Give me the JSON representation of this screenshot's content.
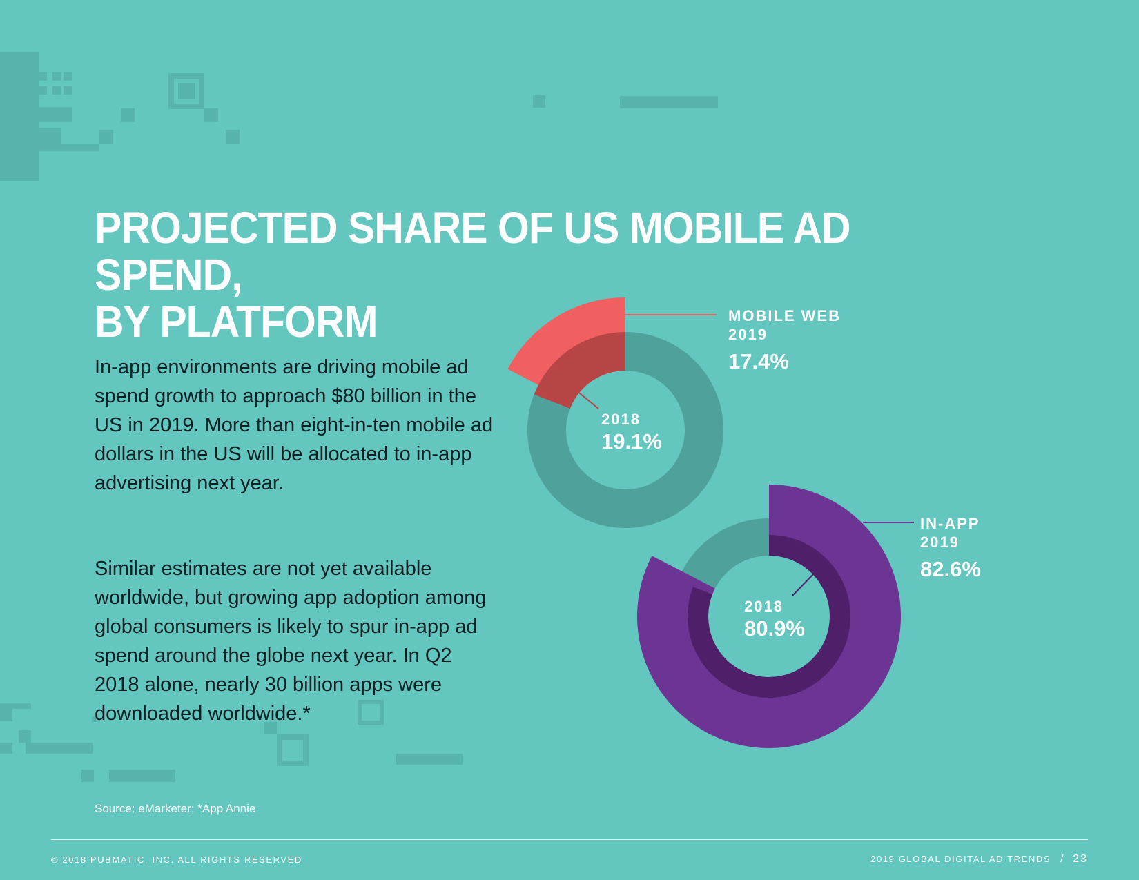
{
  "title_lines": [
    "PROJECTED SHARE OF US MOBILE AD SPEND,",
    "BY PLATFORM"
  ],
  "paragraphs": [
    "In-app environments are driving mobile ad spend growth to approach $80 billion in the US in 2019. More than eight-in-ten mobile ad dollars in the US will be allocated to in-app advertising next year.",
    "Similar estimates are not yet available worldwide, but growing app adoption among global consumers is likely to spur in-app ad spend around the globe next year. In Q2 2018 alone, nearly 30 billion apps were downloaded worldwide.*"
  ],
  "source": "Source: eMarketer; *App Annie",
  "footer": {
    "copyright": "© 2018 PUBMATIC, INC. ALL RIGHTS RESERVED",
    "report": "2019 GLOBAL DIGITAL AD TRENDS",
    "separator": "/",
    "page": "23"
  },
  "colors": {
    "background": "#63c6bf",
    "track": "#4fa29c",
    "mobile_web_2019": "#f06060",
    "mobile_web_2018": "#b84545",
    "in_app_2019": "#6c3593",
    "in_app_2018": "#4f1f6a",
    "text_dark": "#0c1f23",
    "white": "#ffffff"
  },
  "chart_data": [
    {
      "type": "pie",
      "variant": "nested-donut",
      "title": "",
      "series": [
        {
          "label_lines": [
            "MOBILE WEB",
            "2019"
          ],
          "value": 17.4,
          "display": "17.4%"
        },
        {
          "label_lines": [
            "2018"
          ],
          "value": 19.1,
          "display": "19.1%"
        }
      ]
    },
    {
      "type": "pie",
      "variant": "nested-donut",
      "title": "",
      "series": [
        {
          "label_lines": [
            "IN-APP",
            "2019"
          ],
          "value": 82.6,
          "display": "82.6%"
        },
        {
          "label_lines": [
            "2018"
          ],
          "value": 80.9,
          "display": "80.9%"
        }
      ]
    }
  ]
}
